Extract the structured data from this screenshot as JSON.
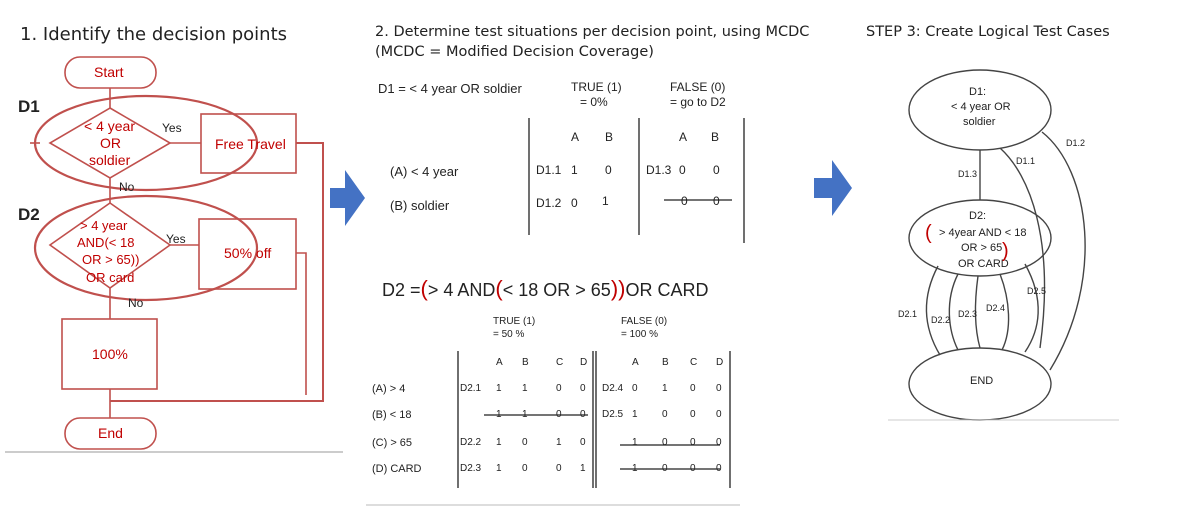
{
  "headings": {
    "step1": "1. Identify the decision points",
    "step2_line1": "2. Determine test situations per decision point, using MCDC",
    "step2_line2": "(MCDC = Modified Decision Coverage)",
    "step3": "STEP 3: Create Logical Test Cases"
  },
  "flowchart": {
    "start": "Start",
    "end": "End",
    "d1_label": "D1",
    "d2_label": "D2",
    "d1_cond": [
      "< 4 year",
      "OR",
      "soldier"
    ],
    "d2_cond": [
      "> 4 year",
      "AND(< 18",
      "OR > 65))",
      "OR card"
    ],
    "yes": "Yes",
    "no": "No",
    "free_travel": "Free Travel",
    "fifty_off": "50% off",
    "hundred": "100%"
  },
  "d1_table": {
    "formula": "D1 = < 4 year OR soldier",
    "true_header": "TRUE (1)",
    "true_sub": "= 0%",
    "false_header": "FALSE (0)",
    "false_sub": "= go to D2",
    "col_a": "A",
    "col_b": "B",
    "rows": [
      {
        "label": "(A)  < 4 year",
        "tid": "D1.1",
        "ta": "1",
        "tb": "0",
        "fid": "D1.3",
        "fa": "0",
        "fb": "0"
      },
      {
        "label": "(B)  soldier",
        "tid": "D1.2",
        "ta": "0",
        "tb": "1",
        "fid": "",
        "fa": "0",
        "fb": "0"
      }
    ]
  },
  "d2_table": {
    "formula_pre": "D2  =",
    "formula_mid1": "> 4  AND",
    "formula_mid2": "< 18  OR  > 65",
    "formula_post": "OR  CARD",
    "true_header": "TRUE (1)",
    "true_sub": "= 50 %",
    "false_header": "FALSE (0)",
    "false_sub": "= 100 %",
    "cols": [
      "A",
      "B",
      "C",
      "D"
    ],
    "rows": [
      {
        "label": "(A)  > 4",
        "tid": "D2.1",
        "t": [
          "1",
          "1",
          "0",
          "0"
        ],
        "fid": "D2.4",
        "f": [
          "0",
          "1",
          "0",
          "0"
        ]
      },
      {
        "label": "(B)  < 18",
        "tid": "",
        "t": [
          "1",
          "1",
          "0",
          "0"
        ],
        "fid": "D2.5",
        "f": [
          "1",
          "0",
          "0",
          "0"
        ]
      },
      {
        "label": "(C)  > 65",
        "tid": "D2.2",
        "t": [
          "1",
          "0",
          "1",
          "0"
        ],
        "fid": "",
        "f": [
          "1",
          "0",
          "0",
          "0"
        ]
      },
      {
        "label": "(D)  CARD",
        "tid": "D2.3",
        "t": [
          "1",
          "0",
          "0",
          "1"
        ],
        "fid": "",
        "f": [
          "1",
          "0",
          "0",
          "0"
        ]
      }
    ]
  },
  "graph": {
    "d1_node": [
      "D1:",
      "< 4 year OR",
      "soldier"
    ],
    "d2_node": [
      "D2:",
      "> 4year AND < 18",
      "OR > 65",
      "OR CARD"
    ],
    "end_node": "END",
    "edges": [
      "D1.1",
      "D1.2",
      "D1.3",
      "D2.1",
      "D2.2",
      "D2.3",
      "D2.4",
      "D2.5"
    ]
  }
}
